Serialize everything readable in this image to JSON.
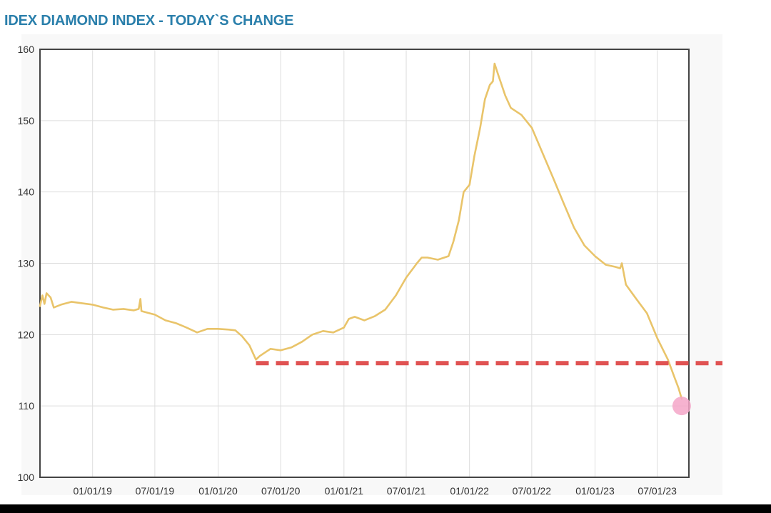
{
  "title": "IDEX DIAMOND INDEX - TODAY`S CHANGE",
  "colors": {
    "title": "#2a7fab",
    "line": "#e9c46a",
    "reference_line": "#e05252",
    "marker": "#f4a6c8",
    "grid": "#dddddd",
    "axis": "#444444"
  },
  "chart_data": {
    "type": "line",
    "title": "IDEX DIAMOND INDEX - TODAY`S CHANGE",
    "xlabel": "",
    "ylabel": "",
    "x_tick_labels": [
      "01/01/19",
      "07/01/19",
      "01/01/20",
      "07/01/20",
      "01/01/21",
      "07/01/21",
      "01/01/22",
      "07/01/22",
      "01/01/23",
      "07/01/23"
    ],
    "y_ticks": [
      100,
      110,
      120,
      130,
      140,
      150,
      160
    ],
    "ylim": [
      100,
      160
    ],
    "xlim": [
      "2018-08-01",
      "2023-10-01"
    ],
    "grid": true,
    "series": [
      {
        "points": [
          [
            "2018-08-01",
            124.0
          ],
          [
            "2018-08-08",
            125.5
          ],
          [
            "2018-08-14",
            124.3
          ],
          [
            "2018-08-20",
            125.8
          ],
          [
            "2018-09-01",
            125.2
          ],
          [
            "2018-09-10",
            123.8
          ],
          [
            "2018-10-01",
            124.2
          ],
          [
            "2018-11-01",
            124.6
          ],
          [
            "2018-12-01",
            124.4
          ],
          [
            "2019-01-01",
            124.2
          ],
          [
            "2019-02-01",
            123.8
          ],
          [
            "2019-03-01",
            123.5
          ],
          [
            "2019-04-01",
            123.6
          ],
          [
            "2019-05-01",
            123.4
          ],
          [
            "2019-05-15",
            123.6
          ],
          [
            "2019-05-20",
            125.0
          ],
          [
            "2019-05-23",
            123.3
          ],
          [
            "2019-06-15",
            123.0
          ],
          [
            "2019-07-01",
            122.8
          ],
          [
            "2019-08-01",
            122.0
          ],
          [
            "2019-09-01",
            121.6
          ],
          [
            "2019-10-01",
            121.0
          ],
          [
            "2019-11-01",
            120.3
          ],
          [
            "2019-12-01",
            120.8
          ],
          [
            "2020-01-01",
            120.8
          ],
          [
            "2020-02-01",
            120.7
          ],
          [
            "2020-02-20",
            120.6
          ],
          [
            "2020-03-10",
            119.8
          ],
          [
            "2020-04-01",
            118.5
          ],
          [
            "2020-04-20",
            116.5
          ],
          [
            "2020-05-01",
            117.0
          ],
          [
            "2020-06-01",
            118.0
          ],
          [
            "2020-07-01",
            117.8
          ],
          [
            "2020-08-01",
            118.2
          ],
          [
            "2020-09-01",
            119.0
          ],
          [
            "2020-10-01",
            120.0
          ],
          [
            "2020-11-01",
            120.5
          ],
          [
            "2020-12-01",
            120.3
          ],
          [
            "2021-01-01",
            121.0
          ],
          [
            "2021-01-15",
            122.2
          ],
          [
            "2021-02-01",
            122.5
          ],
          [
            "2021-03-01",
            122.0
          ],
          [
            "2021-04-01",
            122.6
          ],
          [
            "2021-05-01",
            123.5
          ],
          [
            "2021-06-01",
            125.5
          ],
          [
            "2021-07-01",
            128.0
          ],
          [
            "2021-08-01",
            130.0
          ],
          [
            "2021-08-15",
            130.8
          ],
          [
            "2021-09-01",
            130.8
          ],
          [
            "2021-10-01",
            130.5
          ],
          [
            "2021-11-01",
            131.0
          ],
          [
            "2021-11-15",
            133.0
          ],
          [
            "2021-12-01",
            136.0
          ],
          [
            "2021-12-15",
            140.0
          ],
          [
            "2022-01-01",
            141.0
          ],
          [
            "2022-01-15",
            145.0
          ],
          [
            "2022-02-01",
            149.0
          ],
          [
            "2022-02-15",
            153.0
          ],
          [
            "2022-03-01",
            155.0
          ],
          [
            "2022-03-10",
            155.5
          ],
          [
            "2022-03-15",
            158.0
          ],
          [
            "2022-03-25",
            156.5
          ],
          [
            "2022-04-15",
            153.5
          ],
          [
            "2022-05-01",
            151.8
          ],
          [
            "2022-06-01",
            150.8
          ],
          [
            "2022-07-01",
            149.0
          ],
          [
            "2022-08-01",
            145.5
          ],
          [
            "2022-09-01",
            142.0
          ],
          [
            "2022-10-01",
            138.5
          ],
          [
            "2022-11-01",
            135.0
          ],
          [
            "2022-12-01",
            132.5
          ],
          [
            "2023-01-01",
            131.0
          ],
          [
            "2023-02-01",
            129.8
          ],
          [
            "2023-03-01",
            129.5
          ],
          [
            "2023-03-15",
            129.3
          ],
          [
            "2023-03-20",
            130.0
          ],
          [
            "2023-04-01",
            127.0
          ],
          [
            "2023-05-01",
            125.0
          ],
          [
            "2023-06-01",
            123.0
          ],
          [
            "2023-07-01",
            119.5
          ],
          [
            "2023-08-01",
            116.5
          ],
          [
            "2023-08-20",
            114.0
          ],
          [
            "2023-09-01",
            112.5
          ],
          [
            "2023-09-10",
            111.0
          ]
        ]
      }
    ],
    "reference_line": {
      "y": 116,
      "x_start": "2020-04-20",
      "style": "dashed"
    },
    "marker": {
      "x": "2023-09-10",
      "y": 110
    }
  }
}
